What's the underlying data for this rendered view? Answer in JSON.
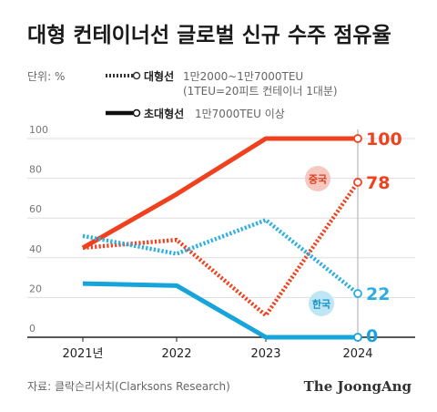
{
  "chart_data": {
    "type": "line",
    "title": "대형 컨테이너선 글로벌 신규 수주 점유율",
    "unit_label": "단위: %",
    "categories": [
      "2021년",
      "2022",
      "2023",
      "2024"
    ],
    "ylim": [
      0,
      100
    ],
    "y_ticks": [
      0,
      20,
      40,
      60,
      80,
      100
    ],
    "grid": true,
    "legend_position": "top",
    "legend": [
      {
        "style": "dotted",
        "name": "대형선",
        "desc": "1만2000~1만7000TEU",
        "desc2": "(1TEU=20피트 컨테이너 1대분)"
      },
      {
        "style": "solid",
        "name": "초대형선",
        "desc": "1만7000TEU 이상"
      }
    ],
    "series": [
      {
        "country": "china",
        "style": "solid",
        "color": "#f0411f",
        "values": [
          45,
          72,
          100,
          100
        ],
        "end_label": "100"
      },
      {
        "country": "china",
        "style": "dotted",
        "color": "#f0411f",
        "values": [
          45,
          49,
          11,
          78
        ],
        "end_label": "78"
      },
      {
        "country": "korea",
        "style": "dotted",
        "color": "#2aaee0",
        "values": [
          51,
          42,
          59,
          22
        ],
        "end_label": "22"
      },
      {
        "country": "korea",
        "style": "solid",
        "color": "#17a4db",
        "values": [
          27,
          26,
          0,
          0
        ],
        "end_label": "0"
      }
    ],
    "badges": {
      "china": "중국",
      "korea": "한국"
    },
    "source": "자료: 클락슨리서치(Clarksons Research)",
    "brand": "The JoongAng"
  }
}
